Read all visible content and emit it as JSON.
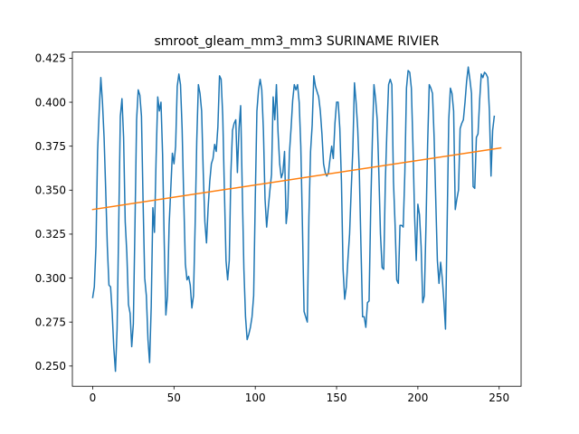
{
  "chart_data": {
    "type": "line",
    "title": "smroot_gleam_mm3_mm3 SURINAME RIVIER",
    "xlabel": "",
    "ylabel": "",
    "xlim": [
      -12.5,
      263.5
    ],
    "ylim": [
      0.2385,
      0.4285
    ],
    "xticks": [
      0,
      50,
      100,
      150,
      200,
      250
    ],
    "yticks": [
      0.25,
      0.275,
      0.3,
      0.325,
      0.35,
      0.375,
      0.4,
      0.425
    ],
    "ytick_labels": [
      "0.250",
      "0.275",
      "0.300",
      "0.325",
      "0.350",
      "0.375",
      "0.400",
      "0.425"
    ],
    "grid": false,
    "legend": "none",
    "series": [
      {
        "color": "#1f77b4",
        "x_start": 0,
        "x_step": 1,
        "values": [
          0.289,
          0.295,
          0.318,
          0.372,
          0.395,
          0.414,
          0.4,
          0.38,
          0.35,
          0.318,
          0.296,
          0.295,
          0.28,
          0.26,
          0.247,
          0.271,
          0.33,
          0.392,
          0.402,
          0.38,
          0.332,
          0.314,
          0.285,
          0.28,
          0.261,
          0.274,
          0.33,
          0.39,
          0.407,
          0.404,
          0.392,
          0.343,
          0.3,
          0.29,
          0.265,
          0.252,
          0.284,
          0.34,
          0.326,
          0.368,
          0.403,
          0.395,
          0.4,
          0.37,
          0.32,
          0.279,
          0.29,
          0.33,
          0.35,
          0.371,
          0.365,
          0.375,
          0.409,
          0.416,
          0.41,
          0.385,
          0.345,
          0.308,
          0.299,
          0.301,
          0.296,
          0.283,
          0.29,
          0.33,
          0.378,
          0.41,
          0.405,
          0.395,
          0.36,
          0.332,
          0.32,
          0.34,
          0.355,
          0.365,
          0.368,
          0.376,
          0.372,
          0.386,
          0.415,
          0.413,
          0.392,
          0.35,
          0.31,
          0.299,
          0.31,
          0.36,
          0.384,
          0.388,
          0.39,
          0.36,
          0.385,
          0.398,
          0.35,
          0.305,
          0.278,
          0.265,
          0.268,
          0.272,
          0.278,
          0.29,
          0.345,
          0.395,
          0.407,
          0.413,
          0.407,
          0.384,
          0.345,
          0.329,
          0.34,
          0.35,
          0.359,
          0.403,
          0.39,
          0.41,
          0.383,
          0.365,
          0.357,
          0.36,
          0.372,
          0.331,
          0.34,
          0.371,
          0.385,
          0.401,
          0.41,
          0.407,
          0.41,
          0.4,
          0.375,
          0.33,
          0.281,
          0.278,
          0.275,
          0.335,
          0.372,
          0.387,
          0.415,
          0.409,
          0.406,
          0.403,
          0.395,
          0.382,
          0.365,
          0.36,
          0.358,
          0.36,
          0.368,
          0.375,
          0.368,
          0.388,
          0.4,
          0.4,
          0.385,
          0.355,
          0.305,
          0.288,
          0.295,
          0.311,
          0.325,
          0.35,
          0.373,
          0.411,
          0.4,
          0.385,
          0.36,
          0.318,
          0.278,
          0.278,
          0.272,
          0.286,
          0.287,
          0.34,
          0.378,
          0.41,
          0.402,
          0.39,
          0.36,
          0.325,
          0.306,
          0.305,
          0.355,
          0.385,
          0.41,
          0.413,
          0.41,
          0.355,
          0.33,
          0.299,
          0.297,
          0.33,
          0.33,
          0.329,
          0.36,
          0.408,
          0.418,
          0.417,
          0.408,
          0.375,
          0.335,
          0.31,
          0.342,
          0.336,
          0.318,
          0.286,
          0.29,
          0.33,
          0.376,
          0.41,
          0.408,
          0.405,
          0.38,
          0.345,
          0.31,
          0.297,
          0.309,
          0.3,
          0.287,
          0.271,
          0.33,
          0.39,
          0.408,
          0.405,
          0.395,
          0.339,
          0.345,
          0.35,
          0.385,
          0.388,
          0.39,
          0.4,
          0.412,
          0.42,
          0.413,
          0.405,
          0.352,
          0.351,
          0.38,
          0.382,
          0.401,
          0.416,
          0.414,
          0.417,
          0.416,
          0.414,
          0.395,
          0.358,
          0.384,
          0.392
        ]
      },
      {
        "color": "#ff7f0e",
        "x": [
          0,
          251
        ],
        "values": [
          0.339,
          0.374
        ]
      }
    ]
  }
}
